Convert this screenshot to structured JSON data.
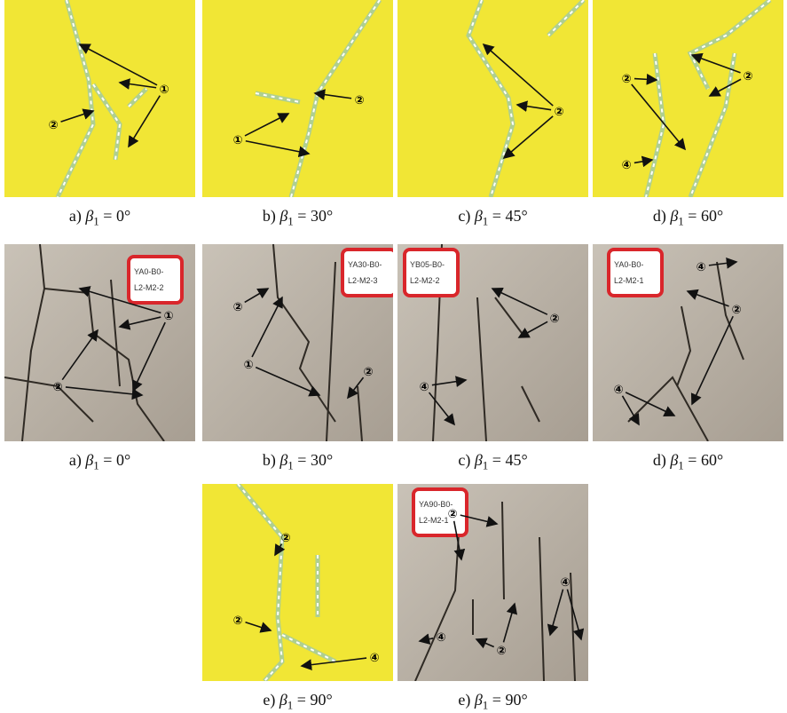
{
  "panels": [
    {
      "caption": {
        "label": "a)",
        "symbol": "β",
        "sub": "1",
        "rest": "= 0°"
      },
      "annotations": [
        "①",
        "②"
      ]
    },
    {
      "caption": {
        "label": "b)",
        "symbol": "β",
        "sub": "1",
        "rest": "= 30°"
      },
      "annotations": [
        "①",
        "②"
      ]
    },
    {
      "caption": {
        "label": "c)",
        "symbol": "β",
        "sub": "1",
        "rest": "= 45°"
      },
      "annotations": [
        "②"
      ]
    },
    {
      "caption": {
        "label": "d)",
        "symbol": "β",
        "sub": "1",
        "rest": "= 60°"
      },
      "annotations": [
        "②",
        "②",
        "④"
      ]
    },
    {
      "caption": {
        "label": "a)",
        "symbol": "β",
        "sub": "1",
        "rest": "= 0°"
      },
      "annotations": [
        "①",
        "②"
      ],
      "tag": [
        "YA0-B0-",
        "L2-M2-2"
      ]
    },
    {
      "caption": {
        "label": "b)",
        "symbol": "β",
        "sub": "1",
        "rest": "= 30°"
      },
      "annotations": [
        "②",
        "①",
        "②"
      ],
      "tag": [
        "YA30-B0-",
        "L2-M2-3"
      ]
    },
    {
      "caption": {
        "label": "c)",
        "symbol": "β",
        "sub": "1",
        "rest": "= 45°"
      },
      "annotations": [
        "②",
        "④"
      ],
      "tag": [
        "YB05-B0-",
        "L2-M2-2"
      ]
    },
    {
      "caption": {
        "label": "d)",
        "symbol": "β",
        "sub": "1",
        "rest": "= 60°"
      },
      "annotations": [
        "④",
        "②",
        "④"
      ],
      "tag": [
        "YA0-B0-",
        "L2-M2-1"
      ]
    },
    {
      "caption": {
        "label": "e)",
        "symbol": "β",
        "sub": "1",
        "rest": "= 90°"
      },
      "annotations": [
        "②",
        "②",
        "④"
      ]
    },
    {
      "caption": {
        "label": "e)",
        "symbol": "β",
        "sub": "1",
        "rest": "= 90°"
      },
      "annotations": [
        "②",
        "②",
        "④",
        "④"
      ],
      "tag": [
        "YA90-B0-",
        "L2-M2-1"
      ]
    }
  ]
}
